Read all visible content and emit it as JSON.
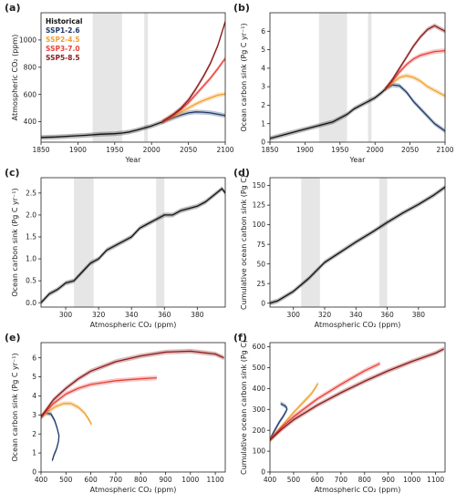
{
  "colors": {
    "historical": "#111111",
    "ssp126": "#1f3a6b",
    "ssp245": "#f0a030",
    "ssp370": "#e8413a",
    "ssp585": "#8b1a1a",
    "shade": "#e6e6e6"
  },
  "legend": [
    {
      "key": "historical",
      "label": "Historical"
    },
    {
      "key": "ssp126",
      "label": "SSP1-2.6"
    },
    {
      "key": "ssp245",
      "label": "SSP2-4.5"
    },
    {
      "key": "ssp370",
      "label": "SSP3-7.0"
    },
    {
      "key": "ssp585",
      "label": "SSP5-8.5"
    }
  ],
  "chart_data": [
    {
      "panel": "(a)",
      "type": "line",
      "xlabel": "Year",
      "ylabel": "Atmospheric CO₂ (ppm)",
      "xlim": [
        1850,
        2100
      ],
      "ylim": [
        250,
        1200
      ],
      "xticks": [
        1850,
        1900,
        1950,
        2000,
        2050,
        2100
      ],
      "yticks": [
        400,
        600,
        800,
        1000
      ],
      "shaded_x": [
        [
          1920,
          1960
        ],
        [
          1990,
          1995
        ]
      ],
      "legend_position": "top-left",
      "series": [
        {
          "key": "historical",
          "x": [
            1850,
            1870,
            1890,
            1910,
            1930,
            1950,
            1960,
            1970,
            1980,
            1990,
            2000,
            2010,
            2014
          ],
          "y": [
            285,
            288,
            294,
            300,
            308,
            312,
            317,
            325,
            338,
            354,
            369,
            389,
            397
          ]
        },
        {
          "key": "ssp126",
          "x": [
            2014,
            2030,
            2040,
            2050,
            2060,
            2070,
            2080,
            2090,
            2100
          ],
          "y": [
            397,
            430,
            450,
            465,
            472,
            470,
            465,
            455,
            445
          ]
        },
        {
          "key": "ssp245",
          "x": [
            2014,
            2030,
            2040,
            2050,
            2060,
            2070,
            2080,
            2090,
            2100
          ],
          "y": [
            397,
            440,
            470,
            500,
            530,
            555,
            575,
            595,
            603
          ]
        },
        {
          "key": "ssp370",
          "x": [
            2014,
            2030,
            2040,
            2050,
            2060,
            2070,
            2080,
            2090,
            2100
          ],
          "y": [
            397,
            450,
            490,
            540,
            600,
            660,
            720,
            790,
            865
          ]
        },
        {
          "key": "ssp585",
          "x": [
            2014,
            2030,
            2040,
            2050,
            2060,
            2070,
            2080,
            2090,
            2100
          ],
          "y": [
            397,
            455,
            500,
            560,
            640,
            730,
            830,
            960,
            1135
          ]
        }
      ]
    },
    {
      "panel": "(b)",
      "type": "line",
      "xlabel": "Year",
      "ylabel": "Ocean carbon sink (Pg C yr⁻¹)",
      "xlim": [
        1850,
        2100
      ],
      "ylim": [
        0,
        7
      ],
      "xticks": [
        1850,
        1900,
        1950,
        2000,
        2050,
        2100
      ],
      "yticks": [
        0,
        1,
        2,
        3,
        4,
        5,
        6
      ],
      "shaded_x": [
        [
          1920,
          1960
        ],
        [
          1990,
          1995
        ]
      ],
      "series": [
        {
          "key": "historical",
          "x": [
            1850,
            1870,
            1890,
            1910,
            1920,
            1930,
            1940,
            1950,
            1960,
            1970,
            1980,
            1990,
            2000,
            2010,
            2014
          ],
          "y": [
            0.2,
            0.4,
            0.6,
            0.8,
            0.9,
            1.0,
            1.1,
            1.3,
            1.5,
            1.8,
            2.0,
            2.2,
            2.4,
            2.7,
            2.85
          ]
        },
        {
          "key": "ssp126",
          "x": [
            2014,
            2025,
            2035,
            2045,
            2055,
            2065,
            2075,
            2085,
            2100
          ],
          "y": [
            2.85,
            3.1,
            3.05,
            2.7,
            2.2,
            1.8,
            1.4,
            1.0,
            0.6
          ]
        },
        {
          "key": "ssp245",
          "x": [
            2014,
            2025,
            2035,
            2045,
            2055,
            2065,
            2075,
            2085,
            2100
          ],
          "y": [
            2.85,
            3.2,
            3.5,
            3.6,
            3.5,
            3.3,
            3.0,
            2.8,
            2.5
          ]
        },
        {
          "key": "ssp370",
          "x": [
            2014,
            2025,
            2035,
            2045,
            2055,
            2065,
            2075,
            2085,
            2100
          ],
          "y": [
            2.85,
            3.3,
            3.8,
            4.2,
            4.5,
            4.7,
            4.8,
            4.9,
            4.95
          ]
        },
        {
          "key": "ssp585",
          "x": [
            2014,
            2025,
            2035,
            2045,
            2055,
            2065,
            2075,
            2085,
            2100
          ],
          "y": [
            2.85,
            3.4,
            4.0,
            4.6,
            5.2,
            5.7,
            6.1,
            6.3,
            6.0
          ]
        }
      ]
    },
    {
      "panel": "(c)",
      "type": "line",
      "xlabel": "Atmospheric CO₂ (ppm)",
      "ylabel": "Ocean carbon sink (Pg C yr⁻¹)",
      "xlim": [
        285,
        397
      ],
      "ylim": [
        -0.1,
        2.85
      ],
      "xticks": [
        300,
        320,
        340,
        360,
        380
      ],
      "yticks": [
        0.0,
        0.5,
        1.0,
        1.5,
        2.0,
        2.5
      ],
      "shaded_x": [
        [
          305,
          317
        ],
        [
          355,
          360
        ]
      ],
      "series": [
        {
          "key": "historical",
          "x": [
            285,
            290,
            295,
            300,
            305,
            310,
            315,
            320,
            325,
            330,
            335,
            340,
            345,
            350,
            355,
            360,
            365,
            370,
            375,
            380,
            385,
            390,
            395,
            397
          ],
          "y": [
            0.0,
            0.2,
            0.3,
            0.45,
            0.5,
            0.7,
            0.9,
            1.0,
            1.2,
            1.3,
            1.4,
            1.5,
            1.7,
            1.8,
            1.9,
            2.0,
            2.0,
            2.1,
            2.15,
            2.2,
            2.3,
            2.45,
            2.6,
            2.5
          ]
        }
      ]
    },
    {
      "panel": "(d)",
      "type": "line",
      "xlabel": "Atmospheric CO₂ (ppm)",
      "ylabel": "Cumulative ocean carbon sink (Pg C)",
      "xlim": [
        285,
        397
      ],
      "ylim": [
        -5,
        160
      ],
      "xticks": [
        300,
        320,
        340,
        360,
        380
      ],
      "yticks": [
        0,
        25,
        50,
        75,
        100,
        125,
        150
      ],
      "shaded_x": [
        [
          305,
          317
        ],
        [
          355,
          360
        ]
      ],
      "series": [
        {
          "key": "historical",
          "x": [
            285,
            290,
            300,
            310,
            320,
            330,
            340,
            350,
            360,
            370,
            380,
            390,
            397
          ],
          "y": [
            0,
            3,
            15,
            32,
            52,
            65,
            78,
            90,
            103,
            115,
            126,
            138,
            148
          ]
        }
      ]
    },
    {
      "panel": "(e)",
      "type": "line",
      "xlabel": "Atmospheric CO₂ (ppm)",
      "ylabel": "Ocean carbon sink (Pg C yr⁻¹)",
      "xlim": [
        400,
        1140
      ],
      "ylim": [
        0,
        6.8
      ],
      "xticks": [
        400,
        500,
        600,
        700,
        800,
        900,
        1000,
        1100
      ],
      "yticks": [
        0,
        1,
        2,
        3,
        4,
        5,
        6
      ],
      "series": [
        {
          "key": "ssp126",
          "x": [
            397,
            420,
            440,
            455,
            465,
            472,
            470,
            462,
            452,
            445
          ],
          "y": [
            2.85,
            3.1,
            3.05,
            2.7,
            2.3,
            1.9,
            1.6,
            1.2,
            0.9,
            0.6
          ]
        },
        {
          "key": "ssp245",
          "x": [
            397,
            430,
            460,
            490,
            520,
            550,
            575,
            590,
            603
          ],
          "y": [
            2.85,
            3.2,
            3.45,
            3.6,
            3.6,
            3.4,
            3.1,
            2.8,
            2.5
          ]
        },
        {
          "key": "ssp370",
          "x": [
            397,
            450,
            500,
            550,
            600,
            650,
            700,
            750,
            800,
            865
          ],
          "y": [
            2.85,
            3.6,
            4.1,
            4.4,
            4.6,
            4.7,
            4.8,
            4.85,
            4.9,
            4.95
          ]
        },
        {
          "key": "ssp585",
          "x": [
            397,
            450,
            500,
            550,
            600,
            700,
            800,
            900,
            1000,
            1100,
            1135
          ],
          "y": [
            2.85,
            3.8,
            4.4,
            4.9,
            5.3,
            5.8,
            6.1,
            6.3,
            6.35,
            6.2,
            6.0
          ]
        }
      ]
    },
    {
      "panel": "(f)",
      "type": "line",
      "xlabel": "Atmospheric CO₂ (ppm)",
      "ylabel": "Cumulative ocean carbon sink (Pg C)",
      "xlim": [
        400,
        1140
      ],
      "ylim": [
        0,
        620
      ],
      "xticks": [
        400,
        500,
        600,
        700,
        800,
        900,
        1000,
        1100
      ],
      "yticks": [
        0,
        100,
        200,
        300,
        400,
        500,
        600
      ],
      "series": [
        {
          "key": "ssp126",
          "x": [
            397,
            420,
            440,
            455,
            465,
            472,
            470,
            462,
            452,
            445
          ],
          "y": [
            150,
            200,
            240,
            265,
            285,
            300,
            310,
            318,
            324,
            328
          ]
        },
        {
          "key": "ssp245",
          "x": [
            397,
            450,
            500,
            550,
            575,
            590,
            603
          ],
          "y": [
            150,
            220,
            285,
            345,
            375,
            400,
            425
          ]
        },
        {
          "key": "ssp370",
          "x": [
            397,
            450,
            500,
            600,
            700,
            800,
            865
          ],
          "y": [
            150,
            215,
            265,
            350,
            420,
            485,
            520
          ]
        },
        {
          "key": "ssp585",
          "x": [
            397,
            450,
            500,
            600,
            700,
            800,
            900,
            1000,
            1100,
            1135
          ],
          "y": [
            150,
            205,
            250,
            320,
            380,
            435,
            485,
            530,
            570,
            590
          ]
        }
      ]
    }
  ]
}
